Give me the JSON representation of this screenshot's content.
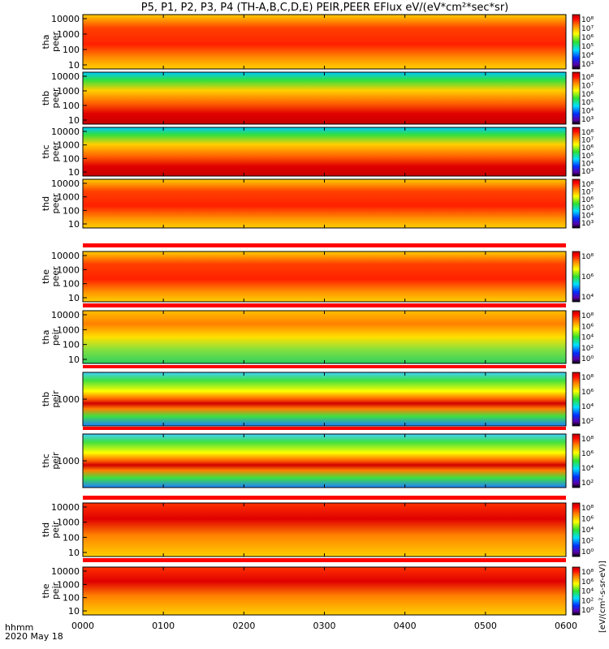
{
  "title": "P5, P1, P2, P3, P4 (TH-A,B,C,D,E) PEIR,PEER EFlux eV/(eV*cm²*sec*sr)",
  "time_axis_label": "hhmm",
  "date_label": "2020 May 18",
  "colorbar_unit_label": "[eV/(cm²-s-sr-eV)]",
  "chart_data": {
    "type": "heatmap",
    "x_ticks": [
      "0000",
      "0100",
      "0200",
      "0300",
      "0400",
      "0500",
      "0600"
    ],
    "panels": [
      {
        "label_top": "tha",
        "label_bottom": "peer",
        "y_ticks": [
          "10",
          "100",
          "1000",
          "10000"
        ],
        "cbar_ticks": [
          "10⁸",
          "10⁷",
          "10⁶",
          "10⁵",
          "10⁴",
          "10³"
        ]
      },
      {
        "label_top": "thb",
        "label_bottom": "peer",
        "y_ticks": [
          "10",
          "100",
          "1000",
          "10000"
        ],
        "cbar_ticks": [
          "10⁸",
          "10⁷",
          "10⁶",
          "10⁵",
          "10⁴",
          "10³"
        ]
      },
      {
        "label_top": "thc",
        "label_bottom": "peer",
        "y_ticks": [
          "10",
          "100",
          "1000",
          "10000"
        ],
        "cbar_ticks": [
          "10⁸",
          "10⁷",
          "10⁶",
          "10⁵",
          "10⁴",
          "10³"
        ]
      },
      {
        "label_top": "thd",
        "label_bottom": "peer",
        "y_ticks": [
          "10",
          "100",
          "1000",
          "10000"
        ],
        "cbar_ticks": [
          "10⁸",
          "10⁷",
          "10⁶",
          "10⁵",
          "10⁴",
          "10³"
        ]
      },
      {
        "label_top": "the",
        "label_bottom": "peer",
        "y_ticks": [
          "10",
          "100",
          "1000",
          "10000"
        ],
        "cbar_ticks": [
          "10⁸",
          "10⁶",
          "10⁴"
        ]
      },
      {
        "label_top": "tha",
        "label_bottom": "peir",
        "y_ticks": [
          "10",
          "100",
          "1000",
          "10000"
        ],
        "cbar_ticks": [
          "10⁸",
          "10⁶",
          "10⁴",
          "10²",
          "10⁰"
        ]
      },
      {
        "label_top": "thb",
        "label_bottom": "peir",
        "y_ticks": [
          "1000"
        ],
        "cbar_ticks": [
          "10⁸",
          "10⁶",
          "10⁴",
          "10²"
        ]
      },
      {
        "label_top": "thc",
        "label_bottom": "peir",
        "y_ticks": [
          "1000"
        ],
        "cbar_ticks": [
          "10⁸",
          "10⁶",
          "10⁴",
          "10²"
        ]
      },
      {
        "label_top": "thd",
        "label_bottom": "peir",
        "y_ticks": [
          "10",
          "100",
          "1000",
          "10000"
        ],
        "cbar_ticks": [
          "10⁸",
          "10⁶",
          "10⁴",
          "10²",
          "10⁰"
        ]
      },
      {
        "label_top": "the",
        "label_bottom": "peir",
        "y_ticks": [
          "10",
          "100",
          "1000",
          "10000"
        ],
        "cbar_ticks": [
          "10⁸",
          "10⁶",
          "10⁴",
          "10²",
          "10⁰"
        ]
      }
    ]
  }
}
